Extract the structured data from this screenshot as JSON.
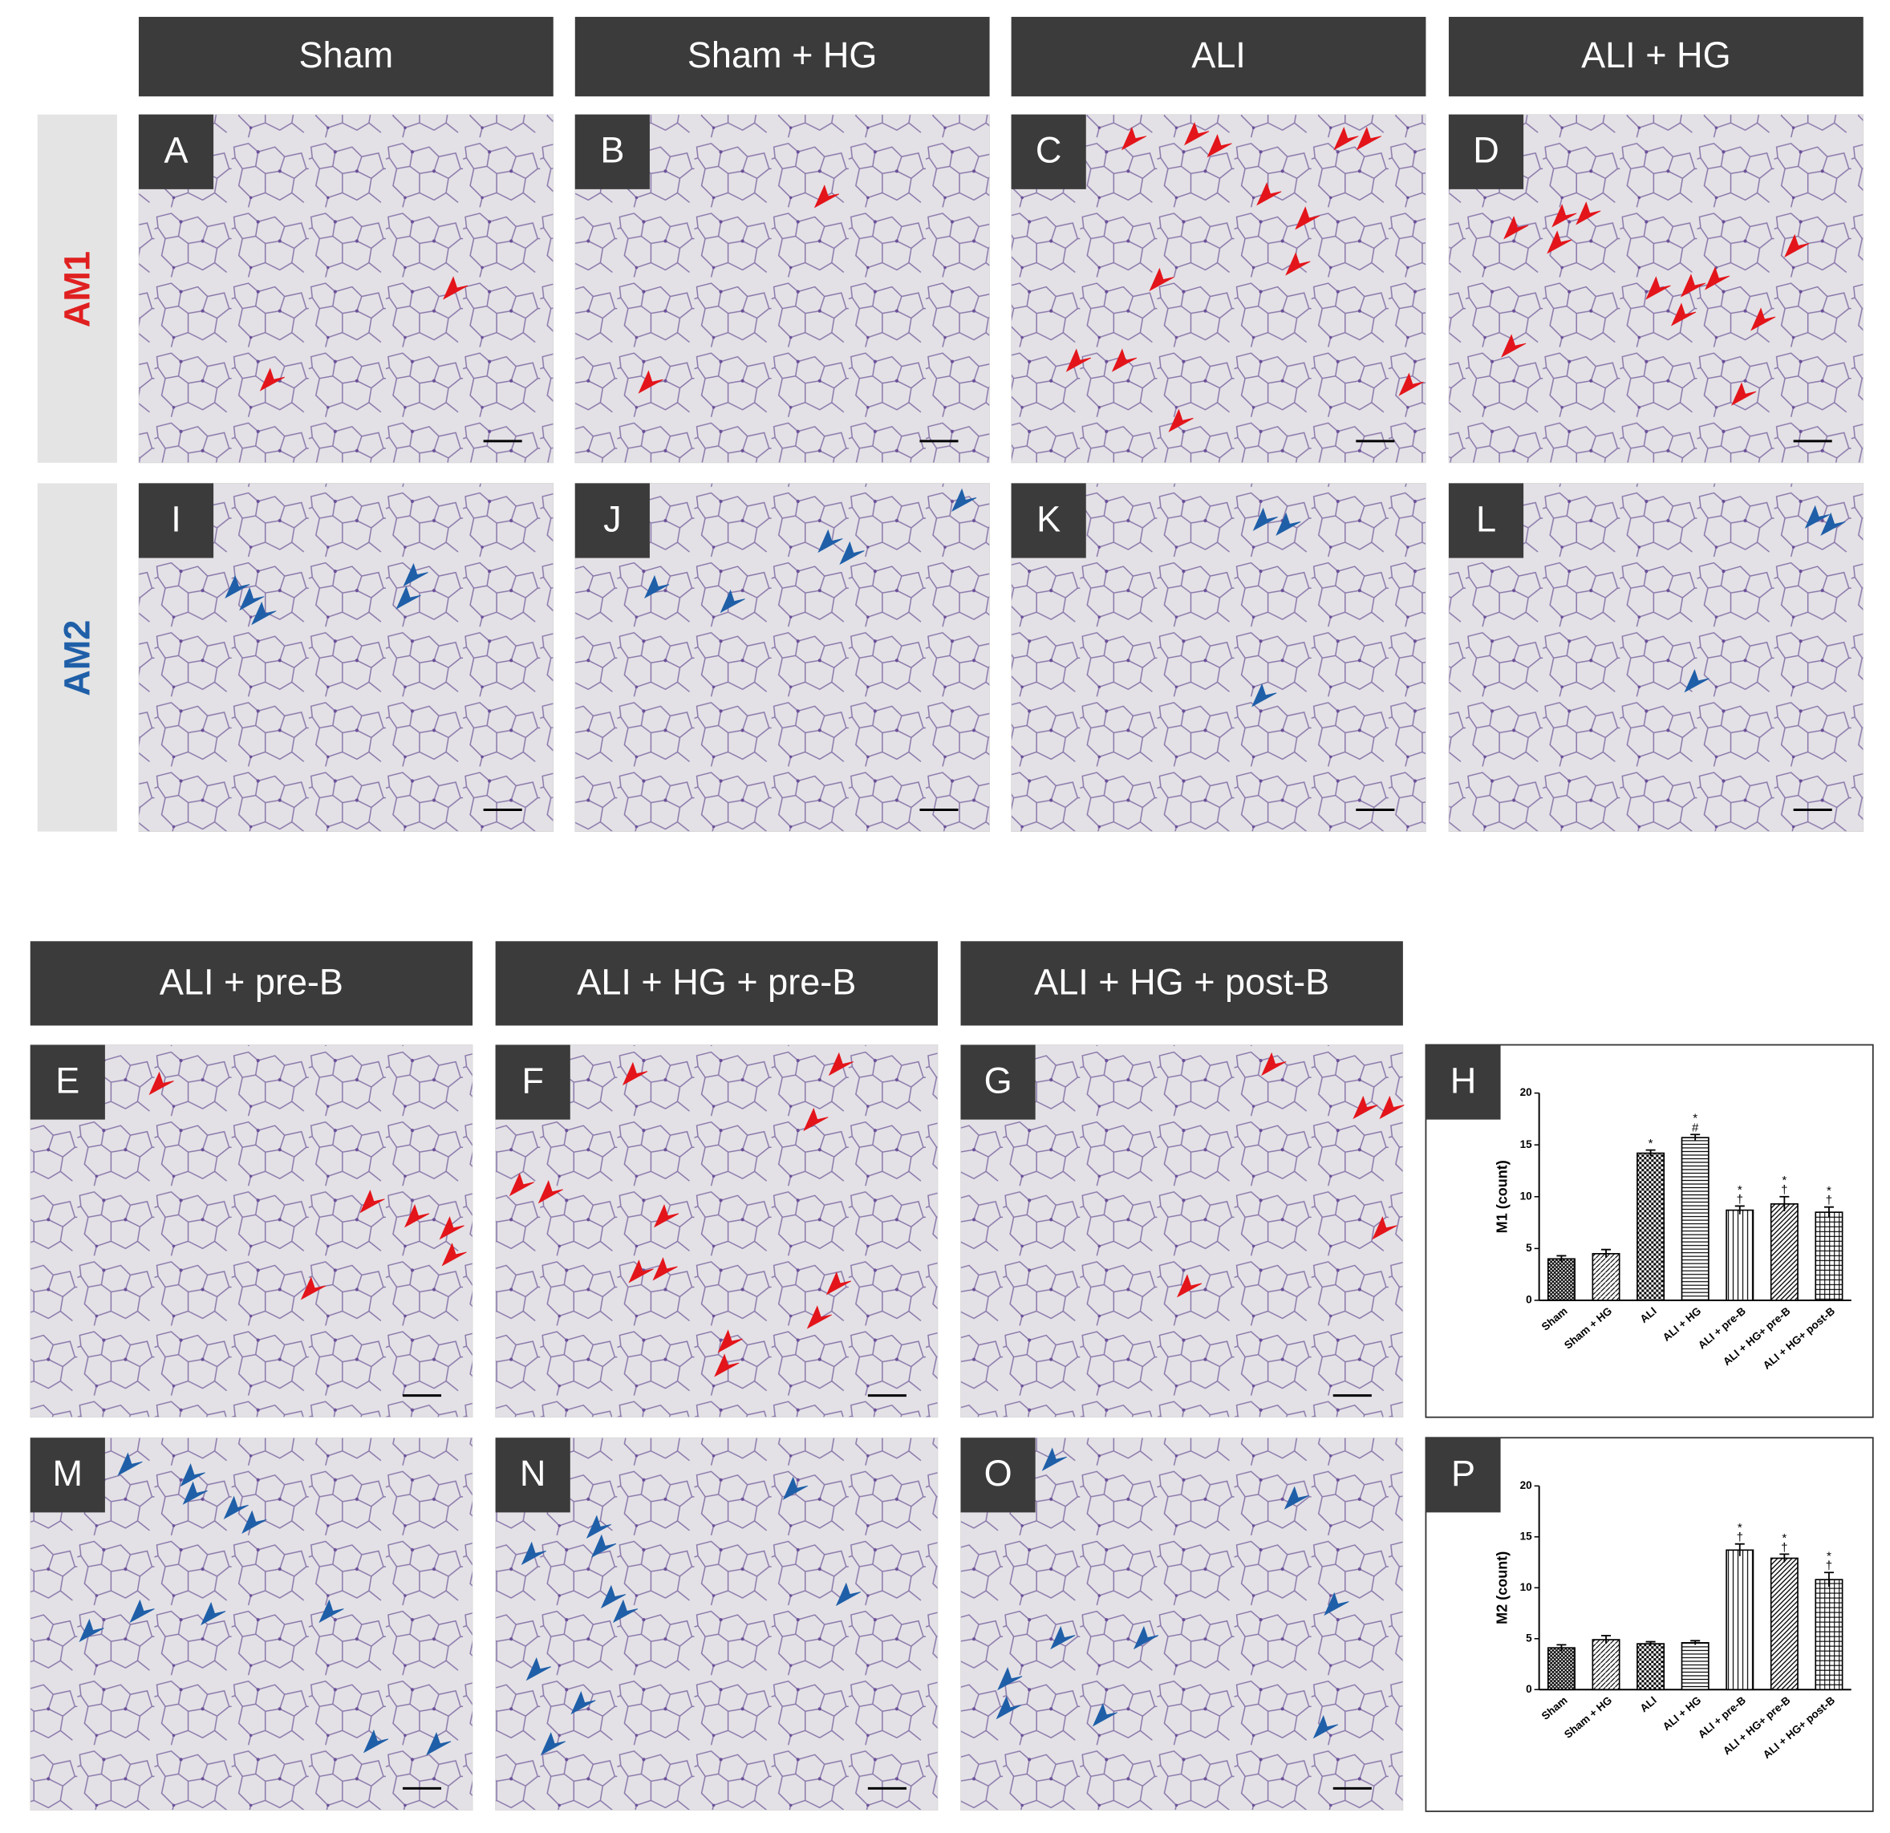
{
  "top_headers": [
    "Sham",
    "Sham + HG",
    "ALI",
    "ALI + HG"
  ],
  "bottom_headers": [
    "ALI + pre-B",
    "ALI + HG + pre-B",
    "ALI + HG + post-B"
  ],
  "row_labels": [
    "AM1",
    "AM2"
  ],
  "row_label_colors": [
    "#e02020",
    "#1f5fa8"
  ],
  "letters_top": [
    [
      "A",
      "B",
      "C",
      "D"
    ],
    [
      "I",
      "J",
      "K",
      "L"
    ]
  ],
  "letters_bottom": [
    [
      "E",
      "F",
      "G"
    ],
    [
      "M",
      "N",
      "O"
    ]
  ],
  "chart_data": [
    {
      "type": "bar",
      "panel_label": "H",
      "y_label": "M1 (count)",
      "categories": [
        "Sham",
        "Sham + HG",
        "ALI",
        "ALI + HG",
        "ALI + pre-B",
        "ALI + HG+ pre-B",
        "ALI + HG+ post-B"
      ],
      "values": [
        4,
        4.5,
        14.2,
        15.7,
        8.7,
        9.3,
        8.5
      ],
      "errors": [
        0.3,
        0.4,
        0.3,
        0.3,
        0.4,
        0.7,
        0.5
      ],
      "annotations": [
        [],
        [],
        [
          "*"
        ],
        [
          "*",
          "#"
        ],
        [
          "*",
          "†"
        ],
        [
          "*",
          "†"
        ],
        [
          "*",
          "†"
        ]
      ],
      "hatches": [
        "cross",
        "diag",
        "check",
        "hline",
        "vline",
        "diag2",
        "grid"
      ],
      "color": "#000000",
      "ylim": [
        0,
        20
      ],
      "yticks": [
        0,
        5,
        10,
        15,
        20
      ]
    },
    {
      "type": "bar",
      "panel_label": "P",
      "y_label": "M2 (count)",
      "categories": [
        "Sham",
        "Sham + HG",
        "ALI",
        "ALI + HG",
        "ALI + pre-B",
        "ALI + HG+ pre-B",
        "ALI + HG+ post-B"
      ],
      "values": [
        4.1,
        4.9,
        4.5,
        4.6,
        13.7,
        12.9,
        10.8
      ],
      "errors": [
        0.3,
        0.4,
        0.2,
        0.2,
        0.6,
        0.4,
        0.7
      ],
      "annotations": [
        [],
        [],
        [],
        [],
        [
          "*",
          "†"
        ],
        [
          "*",
          "†"
        ],
        [
          "*",
          "†"
        ]
      ],
      "hatches": [
        "cross",
        "diag",
        "check",
        "hline",
        "vline",
        "diag2",
        "grid"
      ],
      "color": "#000000",
      "ylim": [
        0,
        20
      ],
      "yticks": [
        0,
        5,
        10,
        15,
        20
      ]
    }
  ]
}
